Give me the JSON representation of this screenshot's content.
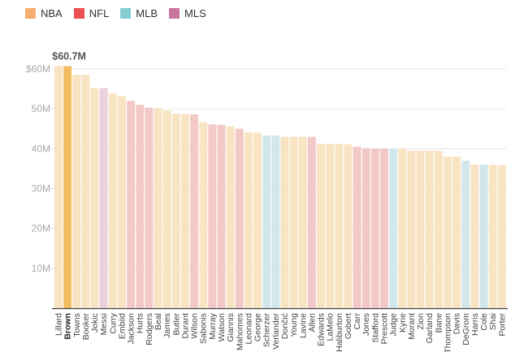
{
  "legend": [
    {
      "label": "NBA",
      "color": "#f7ad70"
    },
    {
      "label": "NFL",
      "color": "#ec5052"
    },
    {
      "label": "MLB",
      "color": "#86cdd3"
    },
    {
      "label": "MLS",
      "color": "#c8769c"
    }
  ],
  "chart_data": {
    "type": "bar",
    "title": "",
    "xlabel": "",
    "ylabel": "",
    "ylim": [
      0,
      60
    ],
    "yticks": [
      10,
      20,
      30,
      40,
      50,
      60
    ],
    "ytick_labels": [
      "10M",
      "20M",
      "30M",
      "40M",
      "50M",
      "$60M"
    ],
    "grid": true,
    "annotation": {
      "label": "$60.7M",
      "category": "Brown"
    },
    "highlight": "Brown",
    "league_colors": {
      "NBA": {
        "bar": "#f8e3c2",
        "highlight": "#f3bc60"
      },
      "NFL": {
        "bar": "#f3c9c8"
      },
      "MLB": {
        "bar": "#d2e7eb"
      },
      "MLS": {
        "bar": "#ecd0dc"
      }
    },
    "categories": [
      "Lillard",
      "Brown",
      "Towns",
      "Booker",
      "Jokic",
      "Messi",
      "Curry",
      "Embiid",
      "Jackson",
      "Hurts",
      "Rodgers",
      "Beal",
      "James",
      "Butler",
      "Durant",
      "Wilson",
      "Sabonis",
      "Murray",
      "Watson",
      "Giannis",
      "Mahomes",
      "Leonard",
      "George",
      "Scherzer",
      "Verlander",
      "Dončić",
      "Young",
      "Lavine",
      "Allen",
      "Edwards",
      "LaMelo",
      "Haliburton",
      "Gobert",
      "Carr",
      "Jones",
      "Stafford",
      "Prescott",
      "Judge",
      "Kyrie",
      "Morant",
      "Zion",
      "Garland",
      "Bane",
      "Thompson",
      "Davis",
      "DeGrom",
      "Harris",
      "Cole",
      "Shai",
      "Porter"
    ],
    "leagues": [
      "NBA",
      "NBA",
      "NBA",
      "NBA",
      "NBA",
      "MLS",
      "NBA",
      "NBA",
      "NFL",
      "NFL",
      "NFL",
      "NBA",
      "NBA",
      "NBA",
      "NBA",
      "NFL",
      "NBA",
      "NFL",
      "NFL",
      "NBA",
      "NFL",
      "NBA",
      "NBA",
      "MLB",
      "MLB",
      "NBA",
      "NBA",
      "NBA",
      "NFL",
      "NBA",
      "NBA",
      "NBA",
      "NBA",
      "NFL",
      "NFL",
      "NFL",
      "NFL",
      "MLB",
      "NBA",
      "NBA",
      "NBA",
      "NBA",
      "NBA",
      "NBA",
      "NBA",
      "MLB",
      "NBA",
      "MLB",
      "NBA",
      "NBA"
    ],
    "values": [
      60.7,
      60.7,
      58.5,
      58.5,
      55.2,
      55.2,
      53.8,
      53.2,
      52.0,
      51.0,
      50.3,
      50.2,
      49.6,
      48.8,
      48.7,
      48.6,
      46.6,
      46.1,
      46.0,
      45.6,
      45.0,
      44.1,
      44.0,
      43.3,
      43.3,
      43.0,
      43.0,
      43.0,
      43.0,
      41.2,
      41.2,
      41.2,
      41.1,
      40.5,
      40.1,
      40.0,
      40.0,
      40.0,
      40.0,
      39.5,
      39.5,
      39.5,
      39.5,
      38.0,
      38.0,
      37.0,
      36.0,
      36.0,
      35.9,
      35.9
    ]
  }
}
